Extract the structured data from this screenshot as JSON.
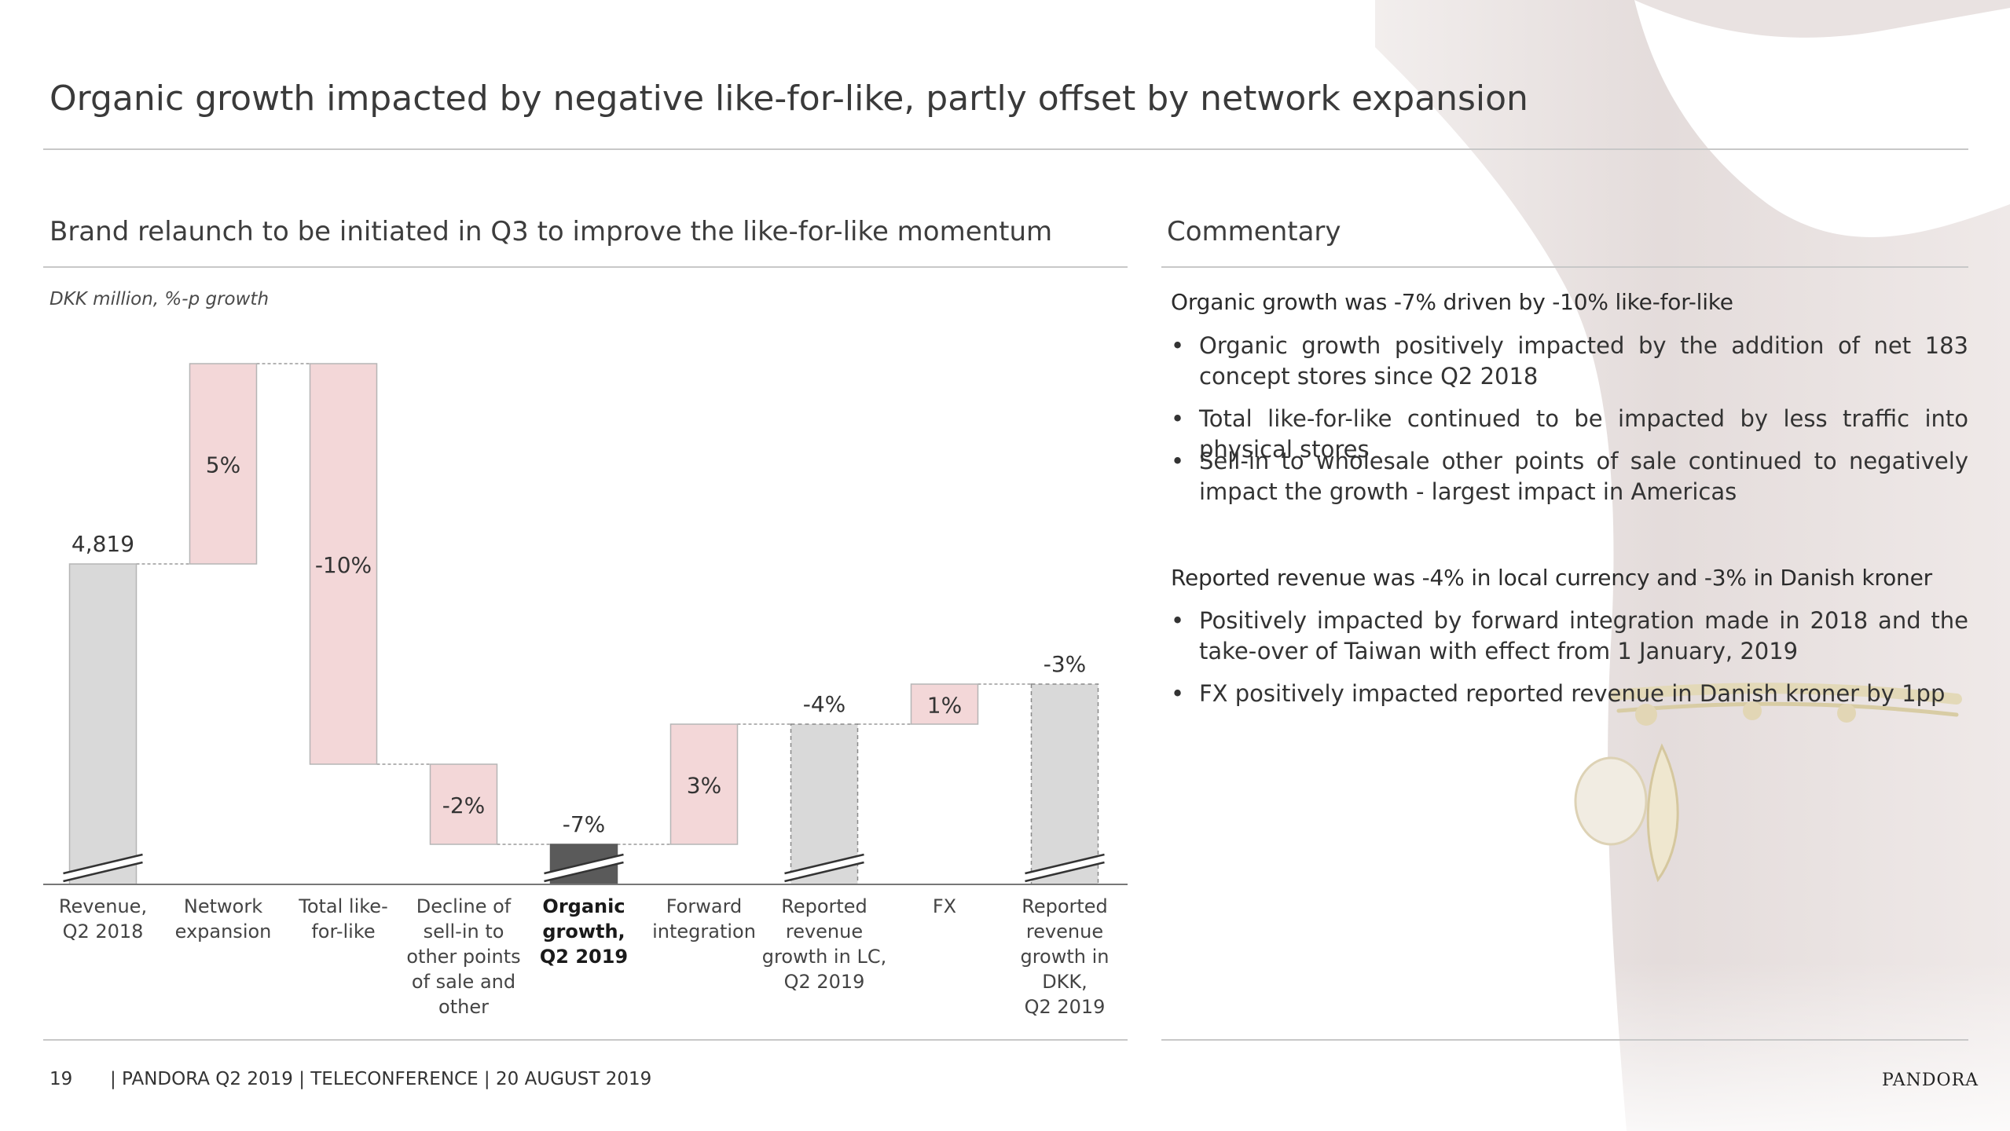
{
  "header": {
    "title": "Organic growth impacted by negative like-for-like, partly offset by network expansion"
  },
  "left_section": {
    "title": "Brand relaunch to be initiated in Q3 to improve the like-for-like momentum",
    "units_note": "DKK million, %-p growth"
  },
  "chart_data": {
    "type": "waterfall",
    "categories": [
      "Revenue, Q2 2018",
      "Network expansion",
      "Total like-for-like",
      "Decline of sell-in to other points of sale and other",
      "Organic growth, Q2 2019",
      "Forward integration",
      "Reported revenue growth in LC, Q2 2019",
      "FX",
      "Reported revenue growth in DKK, Q2 2019"
    ],
    "category_lines": [
      [
        "Revenue,",
        "Q2 2018"
      ],
      [
        "Network",
        "expansion"
      ],
      [
        "Total like-",
        "for-like"
      ],
      [
        "Decline of",
        "sell-in to",
        "other points",
        "of sale and",
        "other"
      ],
      [
        "Organic",
        "growth,",
        "Q2 2019"
      ],
      [
        "Forward",
        "integration"
      ],
      [
        "Reported",
        "revenue",
        "growth in LC,",
        "Q2 2019"
      ],
      [
        "FX"
      ],
      [
        "Reported",
        "revenue",
        "growth in",
        "DKK,",
        "Q2 2019"
      ]
    ],
    "labels": [
      "4,819",
      "5%",
      "-10%",
      "-2%",
      "-7%",
      "3%",
      "-4%",
      "1%",
      "-3%"
    ],
    "bars": [
      {
        "kind": "base",
        "start": 0,
        "end": 0
      },
      {
        "kind": "delta",
        "start": 0,
        "end": 5
      },
      {
        "kind": "delta",
        "start": 5,
        "end": -5
      },
      {
        "kind": "delta",
        "start": -5,
        "end": -7
      },
      {
        "kind": "total",
        "start": -8,
        "end": -7
      },
      {
        "kind": "delta",
        "start": -7,
        "end": -4
      },
      {
        "kind": "total",
        "start": -8,
        "end": -4
      },
      {
        "kind": "delta",
        "start": -4,
        "end": -3
      },
      {
        "kind": "total",
        "start": -8,
        "end": -3
      }
    ],
    "axis_break": true,
    "colors": {
      "base": "#d9d9d9",
      "delta": "#f3d7d8",
      "organic": "#5a5a5a",
      "outline": "#b5b5b5",
      "connector": "#9a9a9a"
    }
  },
  "commentary": {
    "title": "Commentary",
    "blocks": [
      {
        "heading": "Organic growth was -7% driven by -10% like-for-like",
        "bullets": [
          "Organic growth positively impacted by the addition of net 183 concept stores since Q2 2018",
          "Total like-for-like continued to be impacted by less traffic into physical stores",
          "Sell-in to wholesale other points of sale continued to negatively impact the growth - largest impact in Americas"
        ]
      },
      {
        "heading": "Reported revenue was -4% in local currency and -3% in Danish kroner",
        "bullets": [
          "Positively impacted by forward integration made in 2018 and the take-over of Taiwan with effect from 1 January, 2019",
          "FX positively impacted reported revenue in Danish kroner by 1pp"
        ]
      }
    ],
    "bullet_glyph": "•"
  },
  "footer": {
    "page_number": "19",
    "text": "| PANDORA Q2 2019 | TELECONFERENCE | 20 AUGUST 2019",
    "logo": "PANDORA"
  }
}
